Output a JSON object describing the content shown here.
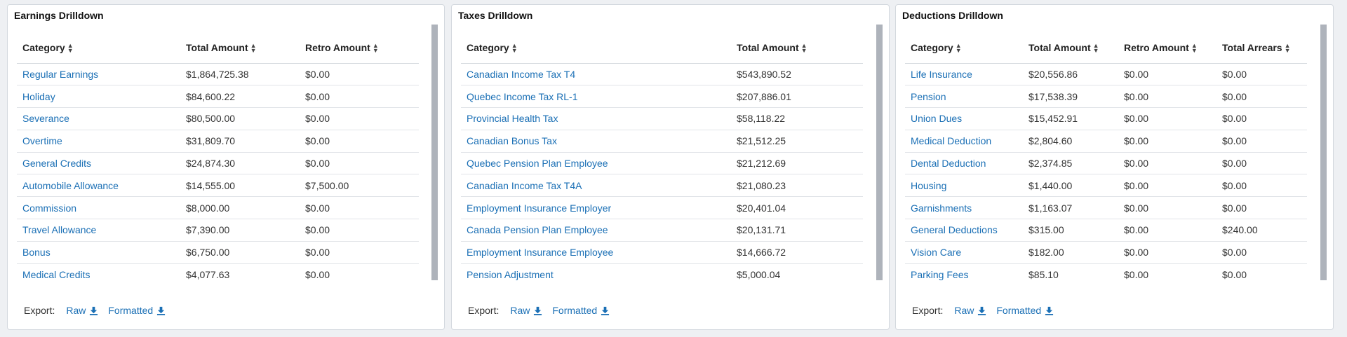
{
  "panels": [
    {
      "title": "Earnings Drilldown",
      "columns": [
        "Category",
        "Total Amount",
        "Retro Amount"
      ],
      "widths": [
        233,
        170,
        170
      ],
      "rows": [
        [
          "Regular Earnings",
          "$1,864,725.38",
          "$0.00"
        ],
        [
          "Holiday",
          "$84,600.22",
          "$0.00"
        ],
        [
          "Severance",
          "$80,500.00",
          "$0.00"
        ],
        [
          "Overtime",
          "$31,809.70",
          "$0.00"
        ],
        [
          "General Credits",
          "$24,874.30",
          "$0.00"
        ],
        [
          "Automobile Allowance",
          "$14,555.00",
          "$7,500.00"
        ],
        [
          "Commission",
          "$8,000.00",
          "$0.00"
        ],
        [
          "Travel Allowance",
          "$7,390.00",
          "$0.00"
        ],
        [
          "Bonus",
          "$6,750.00",
          "$0.00"
        ],
        [
          "Medical Credits",
          "$4,077.63",
          "$0.00"
        ]
      ]
    },
    {
      "title": "Taxes Drilldown",
      "columns": [
        "Category",
        "Total Amount"
      ],
      "widths": [
        385,
        188
      ],
      "rows": [
        [
          "Canadian Income Tax T4",
          "$543,890.52"
        ],
        [
          "Quebec Income Tax RL-1",
          "$207,886.01"
        ],
        [
          "Provincial Health Tax",
          "$58,118.22"
        ],
        [
          "Canadian Bonus Tax",
          "$21,512.25"
        ],
        [
          "Quebec Pension Plan Employee",
          "$21,212.69"
        ],
        [
          "Canadian Income Tax T4A",
          "$21,080.23"
        ],
        [
          "Employment Insurance Employer",
          "$20,401.04"
        ],
        [
          "Canada Pension Plan Employee",
          "$20,131.71"
        ],
        [
          "Employment Insurance Employee",
          "$14,666.72"
        ],
        [
          "Pension Adjustment",
          "$5,000.04"
        ]
      ]
    },
    {
      "title": "Deductions Drilldown",
      "columns": [
        "Category",
        "Total Amount",
        "Retro Amount",
        "Total Arrears"
      ],
      "widths": [
        168,
        136,
        140,
        129
      ],
      "rows": [
        [
          "Life Insurance",
          "$20,556.86",
          "$0.00",
          "$0.00"
        ],
        [
          "Pension",
          "$17,538.39",
          "$0.00",
          "$0.00"
        ],
        [
          "Union Dues",
          "$15,452.91",
          "$0.00",
          "$0.00"
        ],
        [
          "Medical Deduction",
          "$2,804.60",
          "$0.00",
          "$0.00"
        ],
        [
          "Dental Deduction",
          "$2,374.85",
          "$0.00",
          "$0.00"
        ],
        [
          "Housing",
          "$1,440.00",
          "$0.00",
          "$0.00"
        ],
        [
          "Garnishments",
          "$1,163.07",
          "$0.00",
          "$0.00"
        ],
        [
          "General Deductions",
          "$315.00",
          "$0.00",
          "$240.00"
        ],
        [
          "Vision Care",
          "$182.00",
          "$0.00",
          "$0.00"
        ],
        [
          "Parking Fees",
          "$85.10",
          "$0.00",
          "$0.00"
        ]
      ]
    }
  ],
  "export": {
    "label": "Export:",
    "raw_label": "Raw",
    "formatted_label": "Formatted"
  },
  "colors": {
    "link": "#1a6fb5",
    "scrollbar": "#aeb3bb",
    "border": "#d3d8de"
  },
  "icons": {
    "sort": "sort-icon",
    "download": "download-icon"
  }
}
